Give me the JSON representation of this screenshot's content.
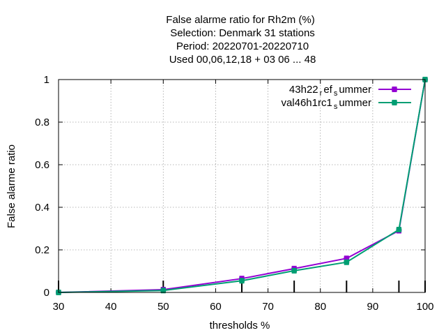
{
  "chart_data": {
    "type": "line",
    "title_lines": [
      "False alarme ratio  for Rh2m (%)",
      "Selection: Denmark     31 stations",
      "Period: 20220701-20220710",
      "Used  00,06,12,18  + 03 06 ... 48"
    ],
    "xlabel": "thresholds %",
    "ylabel": "False alarme ratio",
    "xlim": [
      30,
      100
    ],
    "ylim": [
      0,
      1
    ],
    "x_ticks": [
      "30",
      "40",
      "50",
      "60",
      "70",
      "80",
      "90",
      "100"
    ],
    "y_ticks": [
      "0",
      "0.2",
      "0.4",
      "0.6",
      "0.8",
      "1"
    ],
    "x_tick_values": [
      30,
      40,
      50,
      60,
      70,
      80,
      90,
      100
    ],
    "y_tick_values": [
      0,
      0.2,
      0.4,
      0.6,
      0.8,
      1
    ],
    "grid": true,
    "legend_position": "top-right",
    "observation_tick_x": [
      30,
      50,
      65,
      75,
      85,
      95,
      100
    ],
    "series": [
      {
        "name": "43h22 ref summer",
        "legend_parts": [
          "43h22",
          "r",
          "ef",
          "s",
          "ummer"
        ],
        "color": "#9400d3",
        "x": [
          30,
          50,
          65,
          75,
          85,
          95,
          100
        ],
        "y": [
          0.0,
          0.013,
          0.065,
          0.112,
          0.16,
          0.29,
          1.0
        ]
      },
      {
        "name": "val46h1rc1 summer",
        "legend_parts": [
          "val46h1rc1",
          "s",
          "ummer"
        ],
        "color": "#009e73",
        "x": [
          30,
          50,
          65,
          75,
          85,
          95,
          100
        ],
        "y": [
          0.0,
          0.009,
          0.055,
          0.102,
          0.142,
          0.295,
          1.0
        ]
      }
    ]
  }
}
